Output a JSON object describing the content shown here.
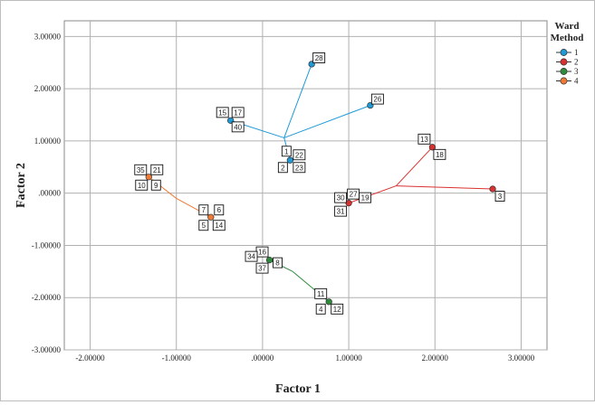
{
  "chart_data": {
    "type": "scatter",
    "xlabel": "Factor 1",
    "ylabel": "Factor 2",
    "xlim": [
      -2.3,
      3.3
    ],
    "ylim": [
      -3.0,
      3.3
    ],
    "xticks": [
      -2,
      -1,
      0,
      1,
      2,
      3
    ],
    "yticks": [
      3,
      2,
      1,
      0,
      -1,
      -2,
      -3
    ],
    "xtick_labels": [
      "-2.00000",
      "-1.00000",
      ".00000",
      "1.00000",
      "2.00000",
      "3.00000"
    ],
    "ytick_labels": [
      "3.00000",
      "2.00000",
      "1.00000",
      ".00000",
      "-1.00000",
      "-2.00000",
      "-3.00000"
    ],
    "grid": true,
    "legend": {
      "title_lines": [
        "Ward",
        "Method"
      ],
      "position": "top-right",
      "entries": [
        "1",
        "2",
        "3",
        "4"
      ]
    },
    "series": [
      {
        "name": "1",
        "color": "#1f9ad6",
        "centroid": [
          0.25,
          1.06
        ],
        "points": [
          {
            "id": "28",
            "x": 0.57,
            "y": 2.47
          },
          {
            "id": "26",
            "x": 1.25,
            "y": 1.68
          },
          {
            "id": "15",
            "x": -0.37,
            "y": 1.39
          },
          {
            "id": "17",
            "x": -0.37,
            "y": 1.39
          },
          {
            "id": "40",
            "x": -0.37,
            "y": 1.39
          },
          {
            "id": "1",
            "x": 0.32,
            "y": 0.63
          },
          {
            "id": "22",
            "x": 0.32,
            "y": 0.63
          },
          {
            "id": "2",
            "x": 0.32,
            "y": 0.63
          },
          {
            "id": "23",
            "x": 0.32,
            "y": 0.63
          }
        ]
      },
      {
        "name": "2",
        "color": "#d8312f",
        "centroid": [
          1.55,
          0.14
        ],
        "points": [
          {
            "id": "13",
            "x": 1.97,
            "y": 0.88
          },
          {
            "id": "18",
            "x": 1.97,
            "y": 0.88
          },
          {
            "id": "3",
            "x": 2.67,
            "y": 0.08
          },
          {
            "id": "27",
            "x": 1.0,
            "y": -0.19
          },
          {
            "id": "30",
            "x": 1.0,
            "y": -0.19
          },
          {
            "id": "19",
            "x": 1.0,
            "y": -0.19
          },
          {
            "id": "31",
            "x": 1.0,
            "y": -0.19
          }
        ]
      },
      {
        "name": "3",
        "color": "#2e8b3c",
        "centroid": [
          0.35,
          -1.5
        ],
        "points": [
          {
            "id": "16",
            "x": 0.08,
            "y": -1.28
          },
          {
            "id": "34",
            "x": 0.08,
            "y": -1.28
          },
          {
            "id": "8",
            "x": 0.08,
            "y": -1.28
          },
          {
            "id": "37",
            "x": 0.08,
            "y": -1.28
          },
          {
            "id": "11",
            "x": 0.77,
            "y": -2.08
          },
          {
            "id": "4",
            "x": 0.77,
            "y": -2.08
          },
          {
            "id": "12",
            "x": 0.77,
            "y": -2.08
          }
        ]
      },
      {
        "name": "4",
        "color": "#f07a34",
        "centroid": [
          -1.0,
          -0.1
        ],
        "points": [
          {
            "id": "35",
            "x": -1.32,
            "y": 0.31
          },
          {
            "id": "21",
            "x": -1.32,
            "y": 0.31
          },
          {
            "id": "10",
            "x": -1.32,
            "y": 0.31
          },
          {
            "id": "9",
            "x": -1.32,
            "y": 0.31
          },
          {
            "id": "7",
            "x": -0.6,
            "y": -0.46
          },
          {
            "id": "6",
            "x": -0.6,
            "y": -0.46
          },
          {
            "id": "5",
            "x": -0.6,
            "y": -0.46
          },
          {
            "id": "14",
            "x": -0.6,
            "y": -0.46
          }
        ]
      }
    ],
    "labels": [
      {
        "text": "28",
        "dx": 8,
        "dy": -7
      },
      {
        "text": "26",
        "dx": 8,
        "dy": -7
      },
      {
        "text": "15",
        "dx": -9,
        "dy": -9
      },
      {
        "text": "17",
        "dx": 8,
        "dy": -9
      },
      {
        "text": "40",
        "dx": 8,
        "dy": 7
      },
      {
        "text": "1",
        "dx": -4,
        "dy": -10
      },
      {
        "text": "22",
        "dx": 10,
        "dy": -6
      },
      {
        "text": "2",
        "dx": -8,
        "dy": 8
      },
      {
        "text": "23",
        "dx": 10,
        "dy": 8
      },
      {
        "text": "13",
        "dx": -9,
        "dy": -9
      },
      {
        "text": "18",
        "dx": 8,
        "dy": 8
      },
      {
        "text": "3",
        "dx": 8,
        "dy": 8
      },
      {
        "text": "27",
        "dx": 5,
        "dy": -10
      },
      {
        "text": "30",
        "dx": -9,
        "dy": -6
      },
      {
        "text": "19",
        "dx": 18,
        "dy": -6
      },
      {
        "text": "31",
        "dx": -9,
        "dy": 9
      },
      {
        "text": "16",
        "dx": -8,
        "dy": -9
      },
      {
        "text": "34",
        "dx": -20,
        "dy": -4
      },
      {
        "text": "8",
        "dx": 9,
        "dy": 3
      },
      {
        "text": "37",
        "dx": -8,
        "dy": 9
      },
      {
        "text": "11",
        "dx": -9,
        "dy": -9
      },
      {
        "text": "4",
        "dx": -9,
        "dy": 8
      },
      {
        "text": "12",
        "dx": 9,
        "dy": 8
      },
      {
        "text": "35",
        "dx": -9,
        "dy": -8
      },
      {
        "text": "21",
        "dx": 9,
        "dy": -8
      },
      {
        "text": "10",
        "dx": -8,
        "dy": 9
      },
      {
        "text": "9",
        "dx": 8,
        "dy": 9
      },
      {
        "text": "7",
        "dx": -8,
        "dy": -8
      },
      {
        "text": "6",
        "dx": 9,
        "dy": -8
      },
      {
        "text": "5",
        "dx": -8,
        "dy": 9
      },
      {
        "text": "14",
        "dx": 9,
        "dy": 9
      }
    ]
  }
}
